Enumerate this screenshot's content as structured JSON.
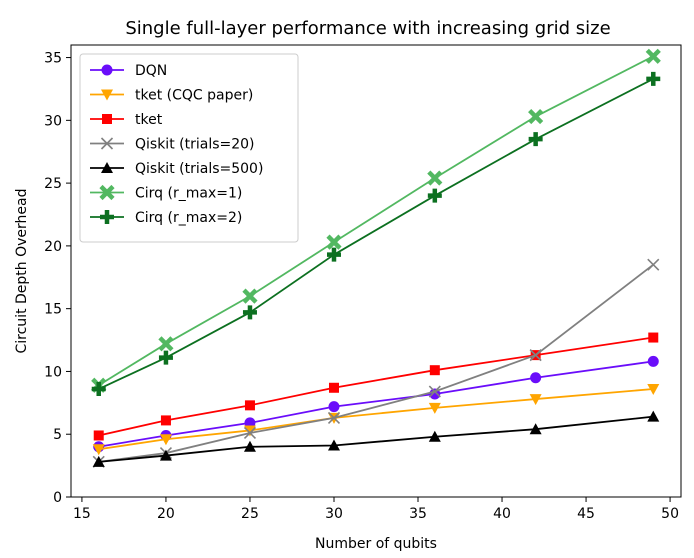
{
  "chart_data": {
    "type": "line",
    "title": "Single full-layer performance with increasing grid size",
    "xlabel": "Number of qubits",
    "ylabel": "Circuit Depth Overhead",
    "xlim": [
      14.35,
      50.65
    ],
    "ylim": [
      0,
      36
    ],
    "xticks": [
      15,
      20,
      25,
      30,
      35,
      40,
      45,
      50
    ],
    "yticks": [
      0,
      5,
      10,
      15,
      20,
      25,
      30,
      35
    ],
    "x": [
      16,
      20,
      25,
      30,
      36,
      42,
      49
    ],
    "legend_position": "top-left",
    "grid": false,
    "series": [
      {
        "name": "DQN",
        "color": "#6a0dfa",
        "marker": "circle",
        "values": [
          4.0,
          4.9,
          5.9,
          7.2,
          8.2,
          9.5,
          10.8
        ]
      },
      {
        "name": "tket (CQC paper)",
        "color": "#ffa500",
        "marker": "triangle-down",
        "values": [
          3.8,
          4.6,
          5.3,
          6.3,
          7.1,
          7.8,
          8.6
        ]
      },
      {
        "name": "tket",
        "color": "#ff0000",
        "marker": "square",
        "values": [
          4.9,
          6.1,
          7.3,
          8.7,
          10.1,
          11.3,
          12.7
        ]
      },
      {
        "name": "Qiskit (trials=20)",
        "color": "#808080",
        "marker": "x",
        "values": [
          2.8,
          3.5,
          5.1,
          6.3,
          8.4,
          11.3,
          18.5
        ]
      },
      {
        "name": "Qiskit (trials=500)",
        "color": "#000000",
        "marker": "triangle-up",
        "values": [
          2.8,
          3.3,
          4.0,
          4.1,
          4.8,
          5.4,
          6.4
        ]
      },
      {
        "name": "Cirq (r_max=1)",
        "color": "#52b861",
        "marker": "x-filled",
        "values": [
          8.9,
          12.2,
          16.0,
          20.3,
          25.4,
          30.3,
          35.1
        ]
      },
      {
        "name": "Cirq (r_max=2)",
        "color": "#0c7020",
        "marker": "plus-filled",
        "values": [
          8.6,
          11.1,
          14.7,
          19.3,
          24.0,
          28.5,
          33.3
        ]
      }
    ]
  }
}
